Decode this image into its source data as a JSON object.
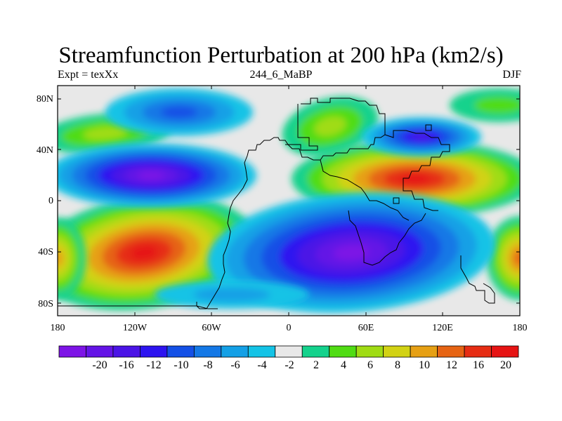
{
  "title": "Streamfunction Perturbation at 200 hPa (km2/s)",
  "left_string": "Expt = texXx",
  "center_string": "244_6_MaBP",
  "right_string": "DJF",
  "lat_labels": [
    "80N",
    "40N",
    "0",
    "40S",
    "80S"
  ],
  "lon_labels": [
    "180",
    "120W",
    "60W",
    "0",
    "60E",
    "120E",
    "180"
  ],
  "colorbar": {
    "labels": [
      "-20",
      "-16",
      "-12",
      "-10",
      "-8",
      "-6",
      "-4",
      "-2",
      "2",
      "4",
      "6",
      "8",
      "10",
      "12",
      "16",
      "20"
    ],
    "colors": [
      "#7d14e6",
      "#6414e6",
      "#4b14e6",
      "#2d14f0",
      "#1450e6",
      "#1478e6",
      "#14a0e6",
      "#14c3e6",
      "#e8e8e8",
      "#14d28c",
      "#50dc14",
      "#a0dc14",
      "#d2d214",
      "#e6a014",
      "#e66414",
      "#e62d14",
      "#e61414"
    ]
  },
  "map": {
    "projection": "cylindrical-equidistant",
    "lon_range": [
      -180,
      180
    ],
    "lat_range": [
      -90,
      90
    ],
    "field_colors": {
      "neutral": "#e8e8e8",
      "pos": [
        "#14d28c",
        "#50dc14",
        "#a0dc14",
        "#d2d214",
        "#e6a014",
        "#e66414",
        "#e62d14",
        "#e61414"
      ],
      "neg": [
        "#14c3e6",
        "#14a0e6",
        "#1478e6",
        "#1450e6",
        "#2d14f0",
        "#4b14e6",
        "#6414e6",
        "#7d14e6"
      ]
    }
  }
}
